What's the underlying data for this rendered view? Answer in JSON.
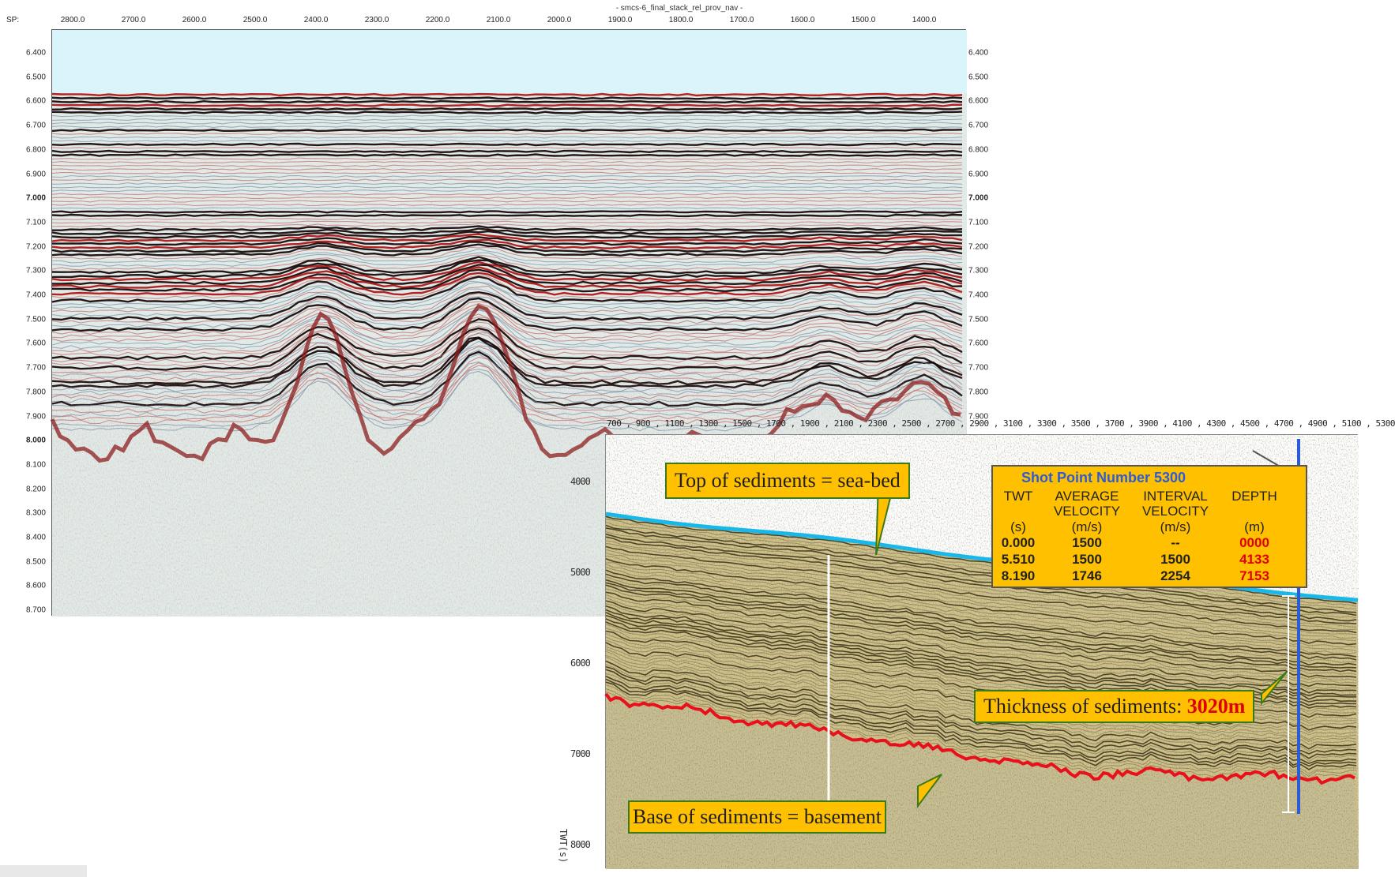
{
  "top_panel": {
    "title": "- smcs-6_final_stack_rel_prov_nav -",
    "sp_label": "SP:",
    "shot_points": [
      "2800.0",
      "2700.0",
      "2600.0",
      "2500.0",
      "2400.0",
      "2300.0",
      "2200.0",
      "2100.0",
      "2000.0",
      "1900.0",
      "1800.0",
      "1700.0",
      "1600.0",
      "1500.0",
      "1400.0"
    ],
    "time_ticks": [
      "6.400",
      "6.500",
      "6.600",
      "6.700",
      "6.800",
      "6.900",
      "7.000",
      "7.100",
      "7.200",
      "7.300",
      "7.400",
      "7.500",
      "7.600",
      "7.700",
      "7.800",
      "7.900",
      "8.000",
      "8.100",
      "8.200",
      "8.300",
      "8.400",
      "8.500",
      "8.600",
      "8.700"
    ],
    "bold_ticks": [
      "7.000",
      "8.000"
    ],
    "colors": {
      "water": "#d9f4fb",
      "seabed": "#b01818",
      "reflector": "#8a1a1a",
      "trace": "#6b8fa8",
      "noise": "#dfe8e4"
    }
  },
  "inset_panel": {
    "top_axis_text": "700 , 900 , 1100 , 1300 , 1500 , 1700 , 1900 , 2100 , 2300 , 2500 , 2700 , 2900 , 3100 , 3300 , 3500 , 3700 , 3900 , 4100 , 4300 , 4500 , 4700 , 4900 , 5100 , 5300",
    "depth_ticks": [
      "4000",
      "5000",
      "6000",
      "7000",
      "8000"
    ],
    "twt_axis_label": "TWT(s)",
    "callout_top": "Top of sediments = sea-bed",
    "callout_base": "Base of sediments = basement",
    "callout_thickness_label": "Thickness of sediments: ",
    "callout_thickness_value": "3020m",
    "table": {
      "title": "Shot Point Number 5300",
      "headers": [
        "TWT",
        "AVERAGE",
        "INTERVAL",
        "DEPTH"
      ],
      "headers2": [
        "",
        "VELOCITY",
        "VELOCITY",
        ""
      ],
      "units": [
        "(s)",
        "(m/s)",
        "(m/s)",
        "(m)"
      ],
      "rows": [
        [
          "0.000",
          "1500",
          "--",
          "0000"
        ],
        [
          "5.510",
          "1500",
          "1500",
          "4133"
        ],
        [
          "8.190",
          "1746",
          "2254",
          "7153"
        ]
      ]
    },
    "colors": {
      "seabed_line": "#19b8e8",
      "basement_line": "#e8101a",
      "callout_bg": "#ffc000",
      "callout_border": "#3a7a1a",
      "shotpoint_line": "#2a5cd8",
      "table_title": "#2e5bd6"
    }
  }
}
